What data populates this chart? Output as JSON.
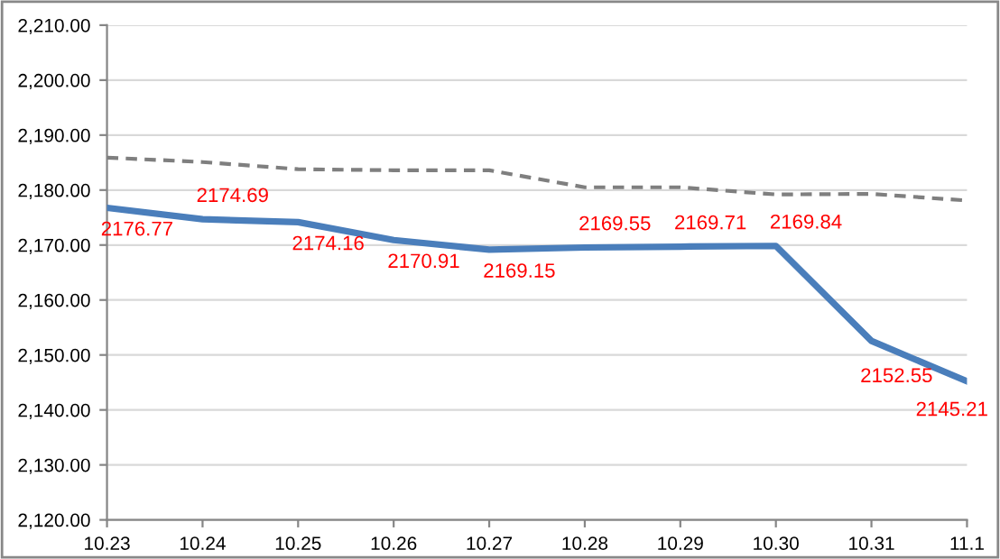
{
  "chart_data": {
    "type": "line",
    "categories": [
      "10.23",
      "10.24",
      "10.25",
      "10.26",
      "10.27",
      "10.28",
      "10.29",
      "10.30",
      "10.31",
      "11.1"
    ],
    "series": [
      {
        "color": "#4a7ebb",
        "values": [
          2176.77,
          2174.69,
          2174.16,
          2170.91,
          2169.15,
          2169.55,
          2169.71,
          2169.84,
          2152.55,
          2145.21
        ],
        "data_labels": true,
        "line_style": "solid"
      },
      {
        "color": "#7f7f7f",
        "values": [
          2185.9,
          2185.1,
          2183.8,
          2183.6,
          2183.6,
          2180.5,
          2180.5,
          2179.2,
          2179.3,
          2178.1
        ],
        "line_style": "dashed"
      }
    ],
    "ylim": [
      2120,
      2210
    ],
    "yticks": [
      {
        "value": 2120,
        "label": "2,120.00"
      },
      {
        "value": 2130,
        "label": "2,130.00"
      },
      {
        "value": 2140,
        "label": "2,140.00"
      },
      {
        "value": 2150,
        "label": "2,150.00"
      },
      {
        "value": 2160,
        "label": "2,160.00"
      },
      {
        "value": 2170,
        "label": "2,170.00"
      },
      {
        "value": 2180,
        "label": "2,180.00"
      },
      {
        "value": 2190,
        "label": "2,190.00"
      },
      {
        "value": 2200,
        "label": "2,200.00"
      },
      {
        "value": 2210,
        "label": "2,210.00"
      }
    ],
    "grid": "y",
    "legend": false,
    "marker": "none"
  }
}
